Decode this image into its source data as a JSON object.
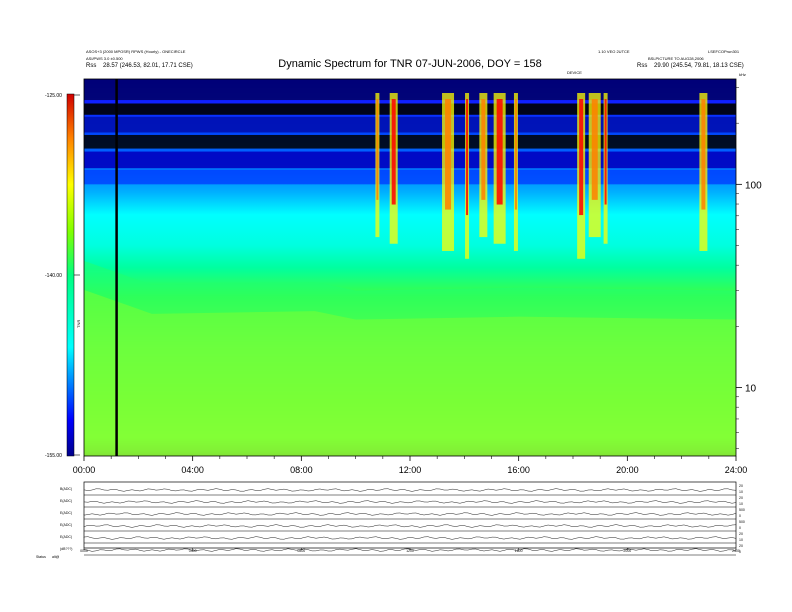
{
  "header": {
    "left_line1": "ASOS+3 (2000 MPOSR) RPWS (Hourly) - ONECIRCLE",
    "left_line2": "ASI/PWS 3.0 ±0.500",
    "left_line3_label": "Rss",
    "left_line3_value": "28.57 (246.53, 82.01, 17.71 CSE)",
    "right_line1a": "1.10 VEO 2UTCE",
    "right_line1b": "LSEFCOPrun301",
    "right_line2": "BSLPICTURE TO AUG28,2006",
    "right_line3_label": "Rss",
    "right_line3_value": "29.90 (245.54, 79.81, 18.13 CSE)",
    "mid_marker": "DEVICE"
  },
  "chart_data": [
    {
      "type": "heatmap",
      "title": "Dynamic Spectrum for TNR 07-JUN-2006, DOY = 158",
      "colorbar_label": "TNR",
      "colorbar_ticks": [
        "-125.00",
        "-140.00",
        "-155.00"
      ],
      "colorbar_range": [
        -155,
        -125
      ],
      "x_ticks": [
        "00:00",
        "04:00",
        "08:00",
        "12:00",
        "16:00",
        "20:00",
        "24:00"
      ],
      "x_range_hours": [
        0,
        24
      ],
      "y_ticks": [
        "100",
        "10"
      ],
      "y_scale": "log",
      "y_range_khz": [
        4.6,
        330
      ],
      "y_unit_label": "kHz",
      "data_gap_marker_hour": 1.2,
      "colormap": [
        "#00008a",
        "#0000ff",
        "#0080ff",
        "#00ffff",
        "#00ff80",
        "#80ff00",
        "#ffff00",
        "#ffa000",
        "#ff0000",
        "#b00000"
      ],
      "background_level_by_hour": [
        {
          "hour": 0,
          "band_top_khz": 42
        },
        {
          "hour": 2.5,
          "band_top_khz": 32
        },
        {
          "hour": 8.5,
          "band_top_khz": 33
        },
        {
          "hour": 10,
          "band_top_khz": 30
        },
        {
          "hour": 16,
          "band_top_khz": 31
        },
        {
          "hour": 24,
          "band_top_khz": 30
        }
      ],
      "bursts_hours": [
        10.8,
        11.4,
        13.4,
        14.1,
        14.7,
        15.3,
        15.9,
        18.3,
        18.8,
        19.2,
        22.8
      ]
    },
    {
      "type": "line",
      "title": "",
      "x_ticks": [
        "0000",
        "0400",
        "0800",
        "1200",
        "1600",
        "2000",
        "2400"
      ],
      "panels": [
        {
          "label": "B(ADC)",
          "right_ticks": [
            "20",
            "10"
          ]
        },
        {
          "label": "E(ADC)",
          "right_ticks": [
            "20",
            "10"
          ]
        },
        {
          "label": "E(ADC)",
          "right_ticks": [
            "500",
            "0"
          ]
        },
        {
          "label": "E(ADC)",
          "right_ticks": [
            "500",
            "0"
          ]
        },
        {
          "label": "E(ADC)",
          "right_ticks": [
            "20",
            "10"
          ]
        },
        {
          "label": "(dB???)",
          "right_ticks": [
            "20",
            "0"
          ]
        }
      ],
      "footer_left": "Status",
      "footer_right": "alt@"
    }
  ]
}
